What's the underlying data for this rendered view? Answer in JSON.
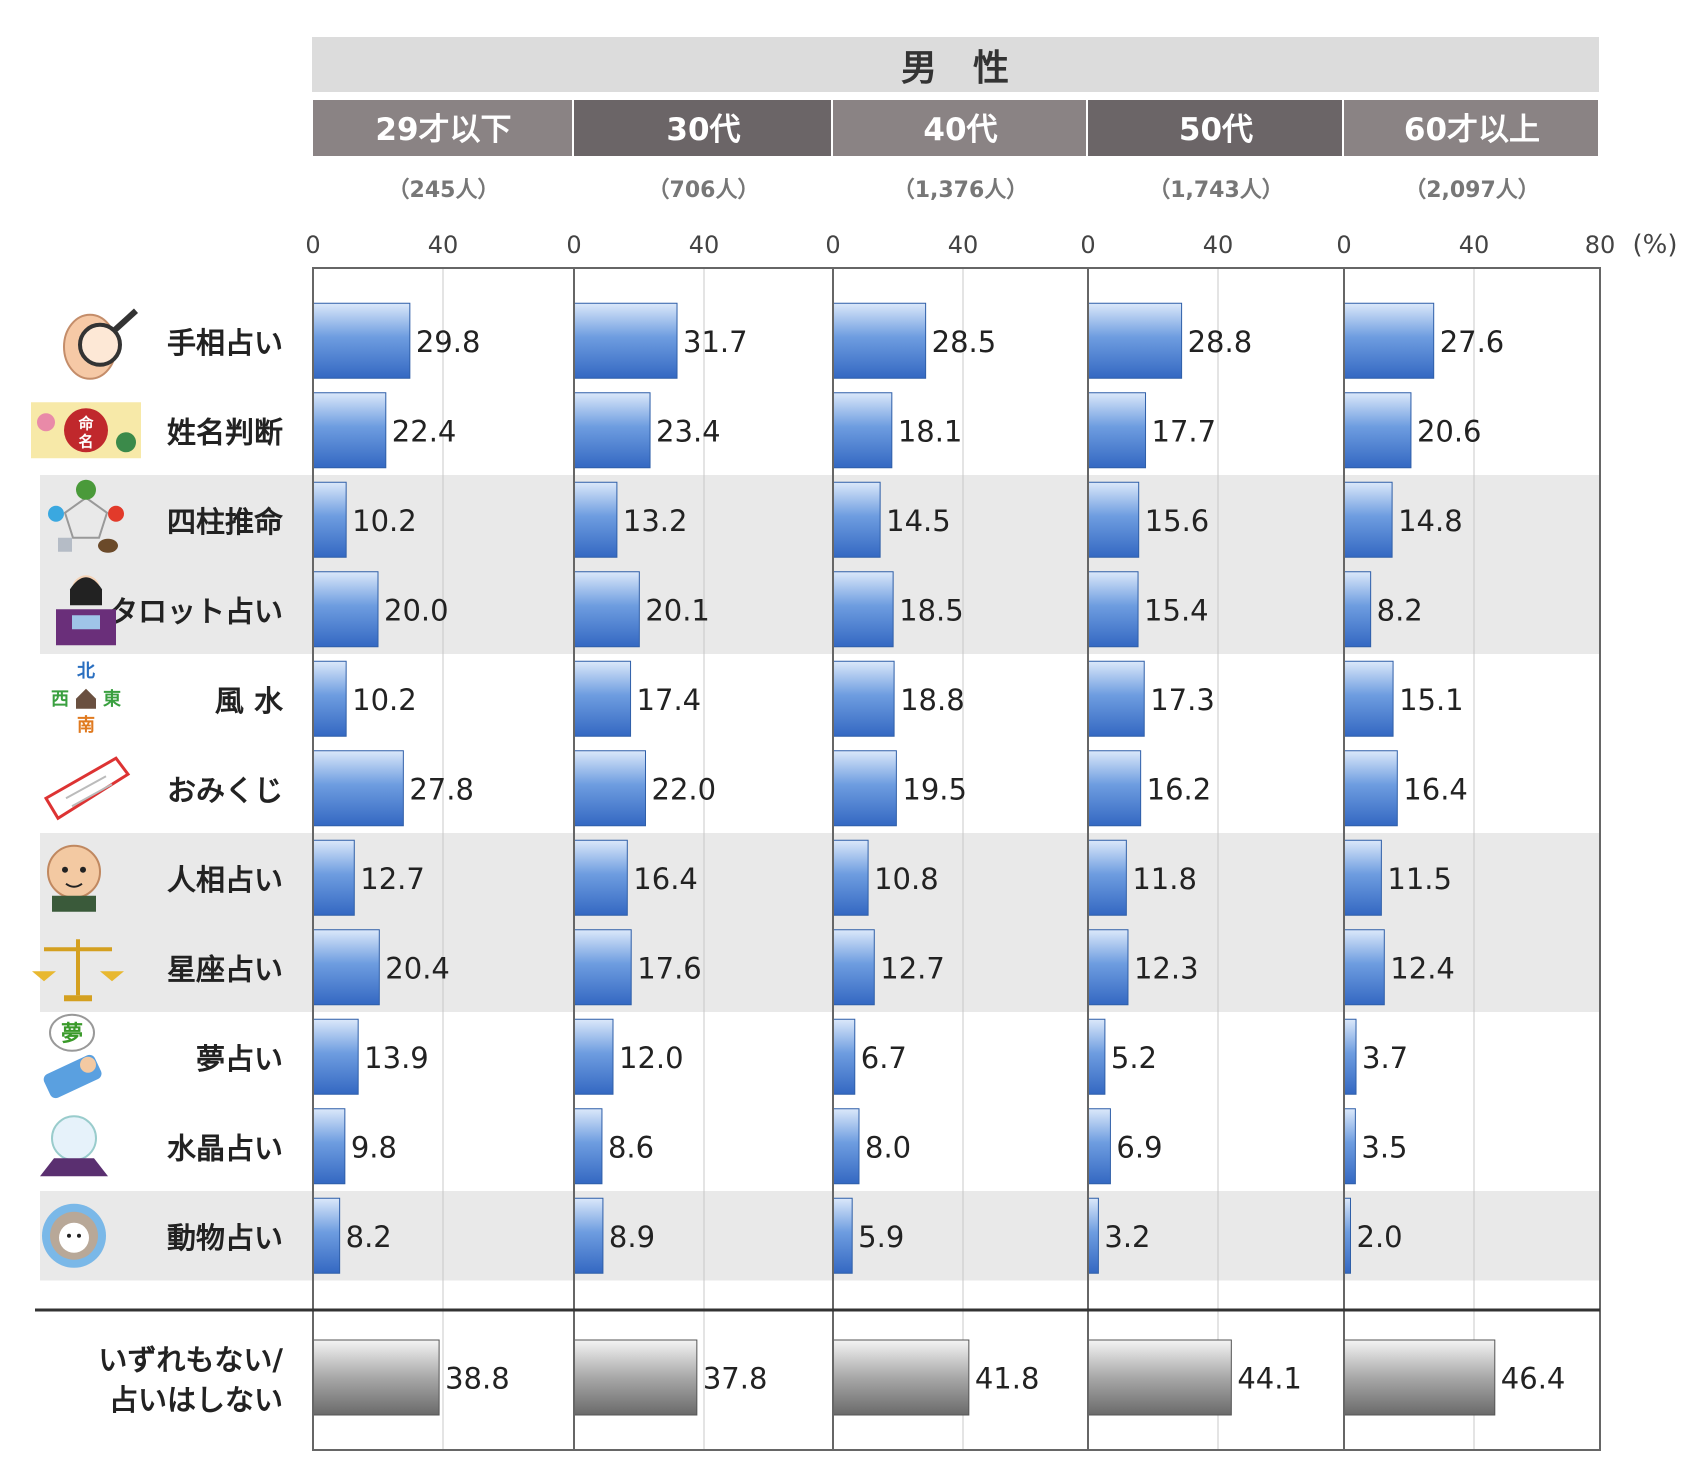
{
  "header": {
    "title": "男　性"
  },
  "chart_data": {
    "type": "bar",
    "title": "男　性",
    "unit": "(%)",
    "xlim": [
      0,
      80
    ],
    "ticks": [
      "0",
      "40",
      "0",
      "40",
      "0",
      "40",
      "0",
      "40",
      "0",
      "40",
      "80"
    ],
    "grid": true,
    "categories": [
      "手相占い",
      "姓名判断",
      "四柱推命",
      "タロット占い",
      "風 水",
      "おみくじ",
      "人相占い",
      "星座占い",
      "夢占い",
      "水晶占い",
      "動物占い"
    ],
    "summary_category": [
      "いずれもない/",
      "占いはしない"
    ],
    "series": [
      {
        "name": "29才以下",
        "n": "（245人）",
        "values": [
          29.8,
          22.4,
          10.2,
          20.0,
          10.2,
          27.8,
          12.7,
          20.4,
          13.9,
          9.8,
          8.2
        ],
        "summary_value": 38.8
      },
      {
        "name": "30代",
        "n": "（706人）",
        "values": [
          31.7,
          23.4,
          13.2,
          20.1,
          17.4,
          22.0,
          16.4,
          17.6,
          12.0,
          8.6,
          8.9
        ],
        "summary_value": 37.8
      },
      {
        "name": "40代",
        "n": "（1,376人）",
        "values": [
          28.5,
          18.1,
          14.5,
          18.5,
          18.8,
          19.5,
          10.8,
          12.7,
          6.7,
          8.0,
          5.9
        ],
        "summary_value": 41.8
      },
      {
        "name": "50代",
        "n": "（1,743人）",
        "values": [
          28.8,
          17.7,
          15.6,
          15.4,
          17.3,
          16.2,
          11.8,
          12.3,
          5.2,
          6.9,
          3.2
        ],
        "summary_value": 44.1
      },
      {
        "name": "60才以上",
        "n": "（2,097人）",
        "values": [
          27.6,
          20.6,
          14.8,
          8.2,
          15.1,
          16.4,
          11.5,
          12.4,
          3.7,
          3.5,
          2.0
        ],
        "summary_value": 46.4
      }
    ],
    "colors": {
      "bar_top": "#d4e3f8",
      "bar_bottom": "#3a72c8",
      "bar_border": "#2f5fa8",
      "summary_top": "#f2f2f2",
      "summary_bottom": "#6e6e6e",
      "band": "#e9e9e9",
      "title_bg": "#dcdcdc",
      "age_header_light": "#8a8384",
      "age_header_dark": "#6b6567"
    }
  },
  "icons": [
    "palm-reading-icon",
    "name-judgement-icon",
    "four-pillars-icon",
    "tarot-reader-icon",
    "fengshui-compass-icon",
    "omikuji-icon",
    "physiognomy-face-icon",
    "libra-scale-icon",
    "dream-sleeper-icon",
    "crystal-ball-icon",
    "animal-sheep-icon"
  ]
}
